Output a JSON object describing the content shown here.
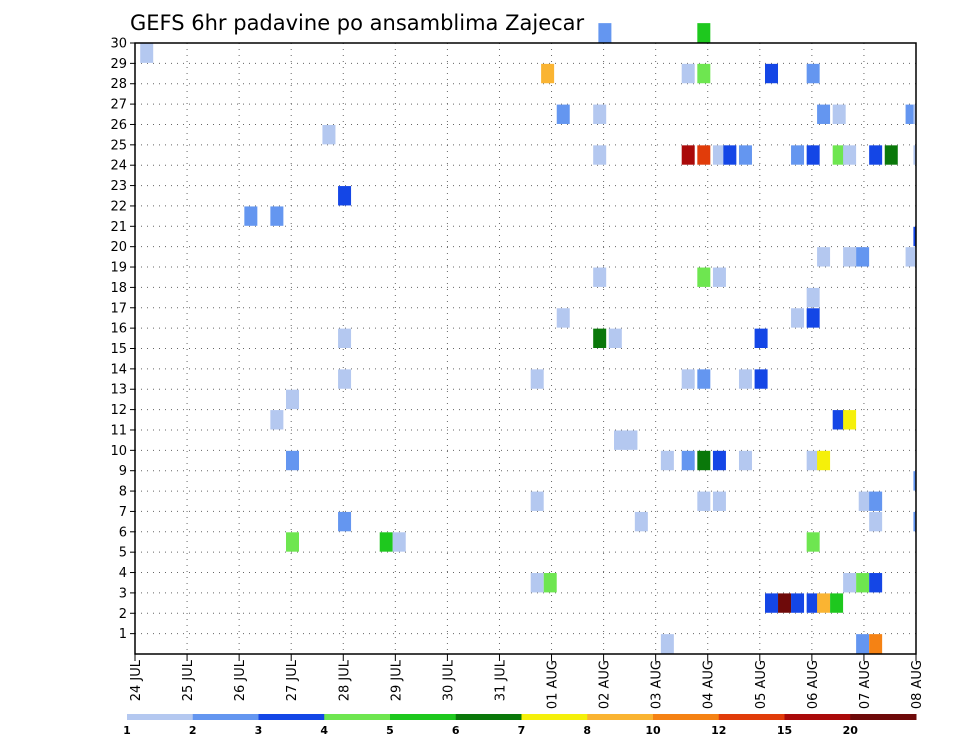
{
  "chart_data": {
    "type": "heatmap",
    "title": "GEFS 6hr padavine po ansamblima Zajecar",
    "xlabel": "",
    "ylabel": "",
    "x_tick_labels": [
      "24 JUL",
      "25 JUL",
      "26 JUL",
      "27 JUL",
      "28 JUL",
      "29 JUL",
      "30 JUL",
      "31 JUL",
      "01 AUG",
      "02 AUG",
      "03 AUG",
      "04 AUG",
      "05 AUG",
      "06 AUG",
      "07 AUG",
      "08 AUG"
    ],
    "y_tick_labels": [
      "1",
      "2",
      "3",
      "4",
      "5",
      "6",
      "7",
      "8",
      "9",
      "10",
      "11",
      "12",
      "13",
      "14",
      "15",
      "16",
      "17",
      "18",
      "19",
      "20",
      "21",
      "22",
      "23",
      "24",
      "25",
      "26",
      "27",
      "28",
      "29",
      "30"
    ],
    "x_range_days": [
      0,
      15
    ],
    "y_range": [
      0,
      30
    ],
    "grid": true,
    "legend_position": "bottom",
    "legend": {
      "labels": [
        "1",
        "2",
        "3",
        "4",
        "5",
        "6",
        "7",
        "8",
        "10",
        "12",
        "15",
        "20"
      ],
      "colors": [
        "#b4c8f0",
        "#6496f0",
        "#1446e6",
        "#6ee650",
        "#1ec81e",
        "#0a780a",
        "#f5f00a",
        "#fab432",
        "#f58214",
        "#e13c0a",
        "#aa0a0a",
        "#6e0a0a"
      ]
    },
    "cells_note": "each cell: [member, day offset from 24 JUL, colour class index into legend.colors]",
    "cells": [
      [
        30,
        8.9,
        1
      ],
      [
        30,
        10.8,
        4
      ],
      [
        29,
        0.1,
        0
      ],
      [
        28,
        7.8,
        7
      ],
      [
        28,
        10.5,
        0
      ],
      [
        28,
        10.8,
        3
      ],
      [
        28,
        12.1,
        2
      ],
      [
        28,
        12.9,
        1
      ],
      [
        26,
        8.1,
        1
      ],
      [
        26,
        8.8,
        0
      ],
      [
        26,
        13.1,
        1
      ],
      [
        26,
        13.4,
        0
      ],
      [
        26,
        14.8,
        1
      ],
      [
        26,
        14.95,
        0
      ],
      [
        25,
        3.6,
        0
      ],
      [
        24,
        8.8,
        0
      ],
      [
        24,
        10.5,
        10
      ],
      [
        24,
        10.8,
        9
      ],
      [
        24,
        11.1,
        0
      ],
      [
        24,
        11.3,
        2
      ],
      [
        24,
        11.6,
        1
      ],
      [
        24,
        12.6,
        1
      ],
      [
        24,
        12.9,
        2
      ],
      [
        24,
        13.4,
        3
      ],
      [
        24,
        13.6,
        0
      ],
      [
        24,
        14.1,
        2
      ],
      [
        24,
        14.4,
        5
      ],
      [
        24,
        14.95,
        0
      ],
      [
        22,
        3.9,
        2
      ],
      [
        21,
        2.1,
        1
      ],
      [
        21,
        2.6,
        1
      ],
      [
        20,
        14.95,
        2
      ],
      [
        19,
        13.1,
        0
      ],
      [
        19,
        13.6,
        0
      ],
      [
        19,
        13.85,
        1
      ],
      [
        19,
        14.8,
        0
      ],
      [
        19,
        14.95,
        0
      ],
      [
        18,
        8.8,
        0
      ],
      [
        18,
        10.8,
        3
      ],
      [
        18,
        11.1,
        0
      ],
      [
        17,
        12.9,
        0
      ],
      [
        16,
        8.1,
        0
      ],
      [
        16,
        12.6,
        0
      ],
      [
        16,
        12.9,
        2
      ],
      [
        15,
        3.9,
        0
      ],
      [
        15,
        8.8,
        5
      ],
      [
        15,
        9.1,
        0
      ],
      [
        15,
        11.9,
        2
      ],
      [
        13,
        3.9,
        0
      ],
      [
        13,
        7.6,
        0
      ],
      [
        13,
        10.5,
        0
      ],
      [
        13,
        10.8,
        1
      ],
      [
        13,
        11.6,
        0
      ],
      [
        13,
        11.9,
        2
      ],
      [
        12,
        2.9,
        0
      ],
      [
        11,
        2.6,
        0
      ],
      [
        11,
        13.4,
        2
      ],
      [
        11,
        13.6,
        6
      ],
      [
        10,
        9.2,
        0
      ],
      [
        10,
        9.4,
        0
      ],
      [
        9,
        2.9,
        1
      ],
      [
        9,
        10.1,
        0
      ],
      [
        9,
        10.5,
        1
      ],
      [
        9,
        10.8,
        5
      ],
      [
        9,
        11.1,
        2
      ],
      [
        9,
        11.6,
        0
      ],
      [
        9,
        12.9,
        0
      ],
      [
        9,
        13.1,
        6
      ],
      [
        8,
        14.95,
        1
      ],
      [
        7,
        7.6,
        0
      ],
      [
        7,
        10.8,
        0
      ],
      [
        7,
        11.1,
        0
      ],
      [
        7,
        13.9,
        0
      ],
      [
        7,
        14.1,
        1
      ],
      [
        6,
        3.9,
        1
      ],
      [
        6,
        9.6,
        0
      ],
      [
        6,
        14.1,
        0
      ],
      [
        6,
        14.95,
        1
      ],
      [
        5,
        2.9,
        3
      ],
      [
        5,
        4.7,
        4
      ],
      [
        5,
        4.95,
        0
      ],
      [
        5,
        12.9,
        3
      ],
      [
        3,
        7.6,
        0
      ],
      [
        3,
        7.85,
        3
      ],
      [
        3,
        13.6,
        0
      ],
      [
        3,
        13.85,
        3
      ],
      [
        3,
        14.1,
        2
      ],
      [
        2,
        12.1,
        2
      ],
      [
        2,
        12.35,
        11
      ],
      [
        2,
        12.6,
        2
      ],
      [
        2,
        12.9,
        2
      ],
      [
        2,
        13.1,
        7
      ],
      [
        2,
        13.35,
        4
      ],
      [
        0,
        10.1,
        0
      ],
      [
        0,
        13.85,
        1
      ],
      [
        0,
        14.1,
        8
      ]
    ]
  }
}
